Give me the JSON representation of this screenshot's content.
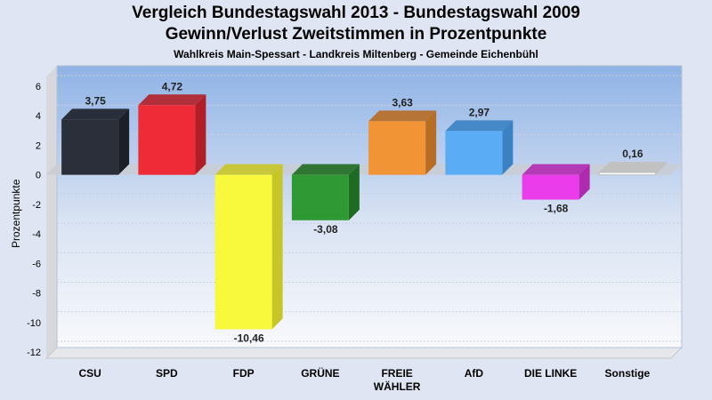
{
  "title": "Vergleich Bundestagswahl 2013 - Bundestagswahl 2009",
  "subtitle": "Gewinn/Verlust Zweitstimmen in Prozentpunkte",
  "subsubtitle": "Wahlkreis Main-Spessart - Landkreis Miltenberg - Gemeinde Eichenbühl",
  "chart_data": {
    "type": "bar",
    "title": "Vergleich Bundestagswahl 2013 - Bundestagswahl 2009",
    "ylabel": "Prozentpunkte",
    "xlabel": "",
    "ylim": [
      -12,
      7
    ],
    "yticks": [
      6,
      4,
      2,
      0,
      -2,
      -4,
      -6,
      -8,
      -10,
      -12
    ],
    "grid": true,
    "categories": [
      [
        "CSU"
      ],
      [
        "SPD"
      ],
      [
        "FDP"
      ],
      [
        "GRÜNE"
      ],
      [
        "FREIE",
        "WÄHLER"
      ],
      [
        "AfD"
      ],
      [
        "DIE LINKE"
      ],
      [
        "Sonstige"
      ]
    ],
    "values": [
      3.75,
      4.72,
      -10.46,
      -3.08,
      3.63,
      2.97,
      -1.68,
      0.16
    ],
    "value_labels": [
      "3,75",
      "4,72",
      "-10,46",
      "-3,08",
      "3,63",
      "2,97",
      "-1,68",
      "0,16"
    ],
    "colors": [
      "#2b2f3a",
      "#ee2b37",
      "#f8f83c",
      "#2f9a34",
      "#f09436",
      "#5aacf5",
      "#ea3cea",
      "#ffffff"
    ],
    "side_colors": [
      "#1c1f27",
      "#b21e28",
      "#c6c628",
      "#206b24",
      "#b86c24",
      "#3b82c4",
      "#b02ab0",
      "#c0c0c0"
    ]
  }
}
